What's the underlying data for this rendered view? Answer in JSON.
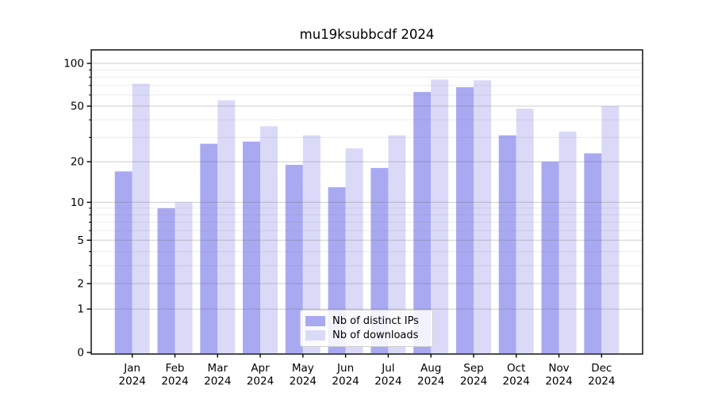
{
  "chart_data": {
    "type": "bar",
    "title": "mu19ksubbcdf 2024",
    "year": "2024",
    "months": [
      "Jan",
      "Feb",
      "Mar",
      "Apr",
      "May",
      "Jun",
      "Jul",
      "Aug",
      "Sep",
      "Oct",
      "Nov",
      "Dec"
    ],
    "series": [
      {
        "name": "Nb of distinct IPs",
        "color": "#a9a9f2",
        "values": [
          17,
          9,
          27,
          28,
          19,
          13,
          18,
          63,
          68,
          31,
          20,
          23
        ]
      },
      {
        "name": "Nb of downloads",
        "color": "#dadaf8",
        "values": [
          72,
          10,
          55,
          36,
          31,
          25,
          31,
          77,
          76,
          48,
          33,
          50
        ]
      }
    ],
    "xlabel": "",
    "ylabel": "",
    "yscale": "log1p",
    "y_ticks": [
      0,
      1,
      2,
      5,
      10,
      20,
      50,
      100
    ],
    "y_minor_ticks": [
      3,
      4,
      6,
      7,
      8,
      9,
      30,
      40,
      60,
      70,
      80,
      90
    ],
    "ylim": [
      0,
      125
    ],
    "grid": "on",
    "legend_position": "lower center",
    "axis_color": "#000000",
    "grid_color": "#646464"
  }
}
